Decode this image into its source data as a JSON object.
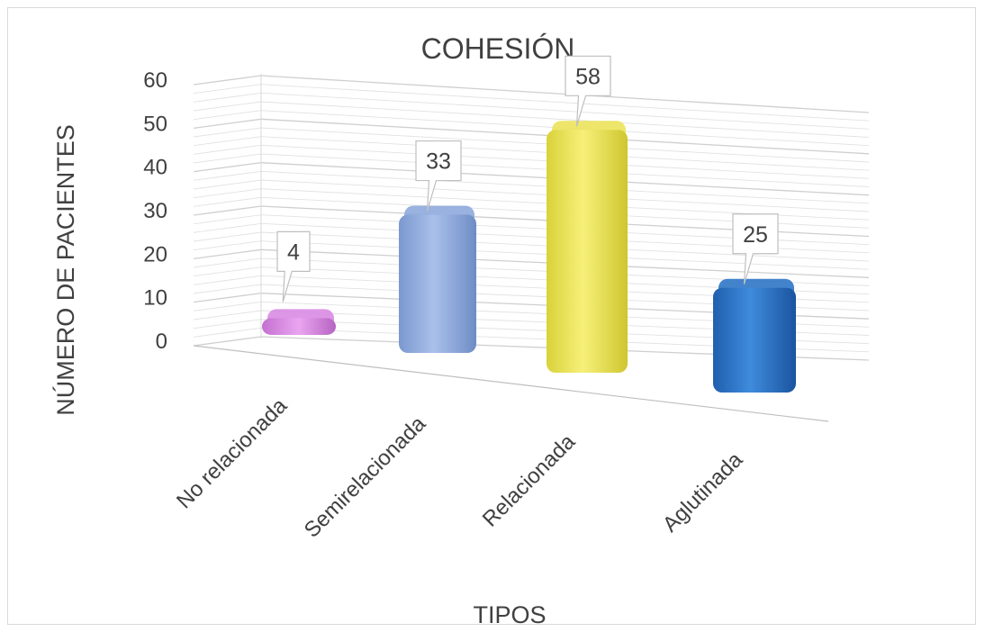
{
  "chart_data": {
    "type": "bar",
    "title": "COHESIÓN",
    "xlabel": "TIPOS",
    "ylabel": "NÚMERO DE PACIENTES",
    "categories": [
      "No relacionada",
      "Semirelacionada",
      "Relacionada",
      "Aglutinada"
    ],
    "values": [
      4,
      33,
      58,
      25
    ],
    "colors": [
      "#d98be3",
      "#8eaadb",
      "#ebe35a",
      "#2e75c6"
    ],
    "y_ticks": [
      0,
      10,
      20,
      30,
      40,
      50,
      60
    ],
    "ylim": [
      0,
      60
    ],
    "grid": true,
    "style": "3d-column",
    "legend": "none"
  }
}
